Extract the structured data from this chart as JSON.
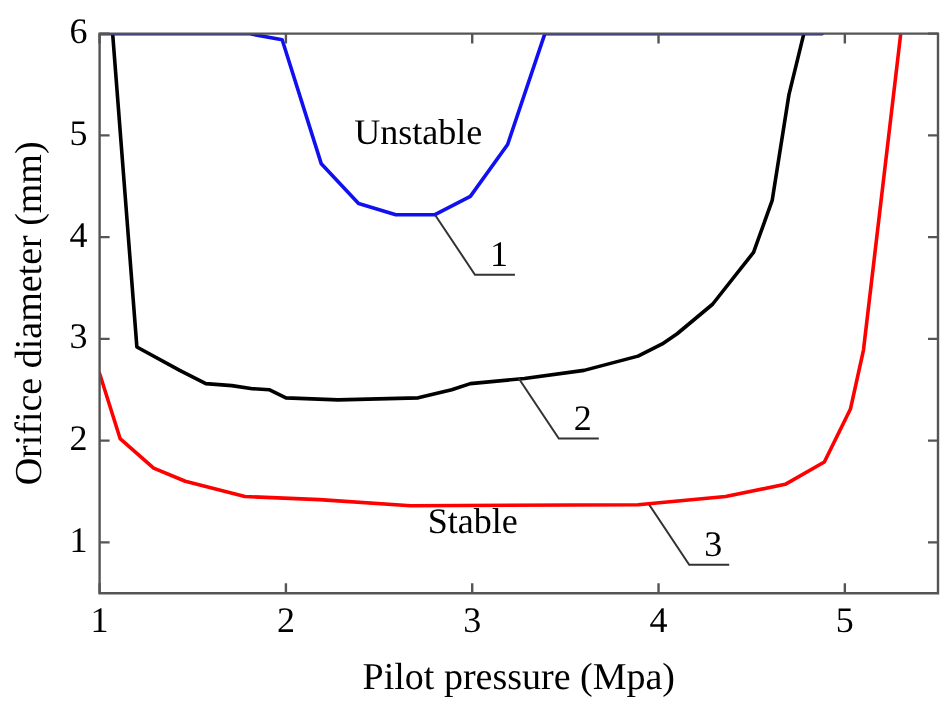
{
  "chart_data": {
    "type": "line",
    "xlabel": "Pilot pressure (Mpa)",
    "ylabel": "Orifice diameter (mm)",
    "xlim": [
      1,
      5.5
    ],
    "xticks": [
      1,
      2,
      3,
      4,
      5
    ],
    "ylim": [
      0.5,
      6
    ],
    "yticks": [
      1,
      2,
      3,
      4,
      5,
      6
    ],
    "grid": false,
    "legend": false,
    "marker": "none",
    "line_style": "solid",
    "series": [
      {
        "color": "#1010f0",
        "x": [
          1,
          1.8,
          1.98,
          2.19,
          2.39,
          2.59,
          2.8,
          2.99,
          3.19,
          3.39,
          4.88
        ],
        "values": [
          6,
          6,
          5.94,
          4.72,
          4.33,
          4.22,
          4.22,
          4.4,
          4.91,
          6,
          6
        ]
      },
      {
        "color": "#000000",
        "x": [
          1.07,
          1.2,
          1.43,
          1.57,
          1.71,
          1.82,
          1.91,
          2.0,
          2.28,
          2.71,
          2.89,
          2.99,
          3.28,
          3.6,
          3.89,
          4.02,
          4.1,
          4.29,
          4.51,
          4.61,
          4.7,
          4.78
        ],
        "values": [
          6,
          2.92,
          2.69,
          2.56,
          2.54,
          2.51,
          2.5,
          2.42,
          2.4,
          2.42,
          2.5,
          2.56,
          2.61,
          2.69,
          2.83,
          2.95,
          3.05,
          3.34,
          3.85,
          4.36,
          5.4,
          6
        ]
      },
      {
        "color": "#ff0000",
        "x": [
          1,
          1.11,
          1.29,
          1.46,
          1.78,
          2.18,
          2.67,
          3.89,
          4.36,
          4.68,
          4.89,
          5.03,
          5.1,
          5.3
        ],
        "values": [
          2.66,
          2.02,
          1.73,
          1.6,
          1.45,
          1.42,
          1.36,
          1.37,
          1.45,
          1.57,
          1.79,
          2.31,
          2.89,
          6
        ]
      }
    ],
    "annotations": [
      "Unstable",
      "Stable",
      {
        "text": "1",
        "x": 2.8,
        "y": 4.22
      },
      {
        "text": "2",
        "x": 3.25,
        "y": 2.61
      },
      {
        "text": "3",
        "x": 3.95,
        "y": 1.37
      }
    ]
  }
}
